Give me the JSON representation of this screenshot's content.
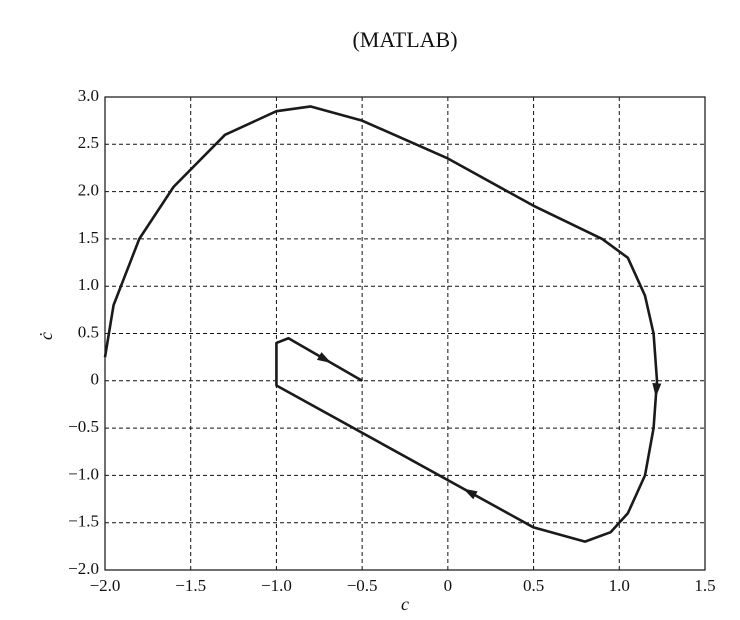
{
  "chart_data": {
    "type": "line",
    "title": "(MATLAB)",
    "x_label": "c",
    "y_label": "ċ",
    "x": [
      -2.0,
      -1.95,
      -1.8,
      -1.6,
      -1.3,
      -1.0,
      -0.8,
      -0.5,
      0,
      0.5,
      0.9,
      1.05,
      1.15,
      1.2,
      1.22,
      1.2,
      1.15,
      1.05,
      0.95,
      0.8,
      0.5,
      -1.0,
      -1.0,
      -0.93,
      -0.5
    ],
    "values": [
      0.25,
      0.8,
      1.5,
      2.05,
      2.6,
      2.85,
      2.9,
      2.75,
      2.35,
      1.85,
      1.5,
      1.3,
      0.9,
      0.5,
      0,
      -0.5,
      -1.0,
      -1.4,
      -1.6,
      -1.7,
      -1.55,
      -0.05,
      0.4,
      0.45,
      0
    ],
    "color": "#1a1a1a",
    "xlim": [
      -2.0,
      1.5
    ],
    "xticks": [
      {
        "value": -2.0,
        "label": "−2.0"
      },
      {
        "value": -1.5,
        "label": "−1.5"
      },
      {
        "value": -1.0,
        "label": "−1.0"
      },
      {
        "value": -0.5,
        "label": "−0.5"
      },
      0,
      0.5,
      {
        "value": 1.0,
        "label": "1.0"
      },
      1.5
    ],
    "ylim": [
      -2.0,
      3.0
    ],
    "yticks": [
      {
        "value": -2.0,
        "label": "−2.0"
      },
      {
        "value": -1.5,
        "label": "−1.5"
      },
      {
        "value": -1.0,
        "label": "−1.0"
      },
      {
        "value": -0.5,
        "label": "−0.5"
      },
      0,
      0.5,
      {
        "value": 1.0,
        "label": "1.0"
      },
      1.5,
      {
        "value": 2.0,
        "label": "2.0"
      },
      2.5,
      {
        "value": 3.0,
        "label": "3.0"
      }
    ],
    "grid": true
  }
}
